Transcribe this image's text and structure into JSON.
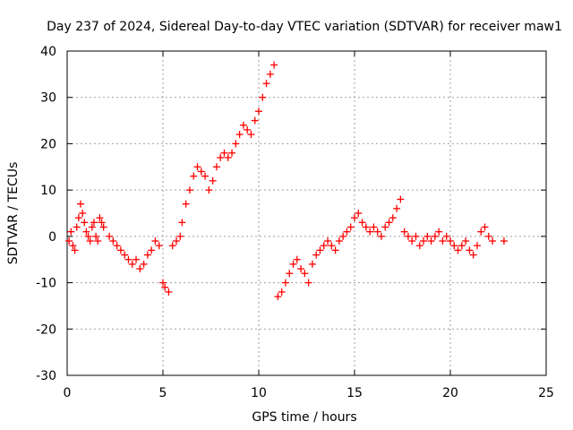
{
  "chart_data": {
    "type": "scatter",
    "title": "Day 237 of 2024, Sidereal Day-to-day VTEC variation (SDTVAR) for receiver maw1",
    "xlabel": "GPS time / hours",
    "ylabel": "SDTVAR / TECUs",
    "xlim": [
      0,
      25
    ],
    "ylim": [
      -30,
      40
    ],
    "xticks": [
      0,
      5,
      10,
      15,
      20,
      25
    ],
    "yticks": [
      -30,
      -20,
      -10,
      0,
      10,
      20,
      30,
      40
    ],
    "xtick_labels": [
      "0",
      "5",
      "10",
      "15",
      "20",
      "25"
    ],
    "ytick_labels": [
      "-30",
      "-20",
      "-10",
      "0",
      "10",
      "20",
      "30",
      "40"
    ],
    "grid": true,
    "marker": "+",
    "color": "#ff0000",
    "series": [
      {
        "name": "SDTVAR",
        "points": [
          [
            0.1,
            -1
          ],
          [
            0.2,
            1
          ],
          [
            0.3,
            -2
          ],
          [
            0.4,
            -3
          ],
          [
            0.5,
            2
          ],
          [
            0.6,
            4
          ],
          [
            0.7,
            7
          ],
          [
            0.8,
            5
          ],
          [
            0.9,
            3
          ],
          [
            1.0,
            1
          ],
          [
            1.1,
            0
          ],
          [
            1.2,
            -1
          ],
          [
            1.3,
            2
          ],
          [
            1.4,
            3
          ],
          [
            1.5,
            0
          ],
          [
            1.6,
            -1
          ],
          [
            1.7,
            4
          ],
          [
            1.8,
            3
          ],
          [
            1.9,
            2
          ],
          [
            2.2,
            0
          ],
          [
            2.4,
            -1
          ],
          [
            2.6,
            -2
          ],
          [
            2.8,
            -3
          ],
          [
            3.0,
            -4
          ],
          [
            3.2,
            -5
          ],
          [
            3.4,
            -6
          ],
          [
            3.6,
            -5
          ],
          [
            3.8,
            -7
          ],
          [
            4.0,
            -6
          ],
          [
            4.2,
            -4
          ],
          [
            4.4,
            -3
          ],
          [
            4.6,
            -1
          ],
          [
            4.8,
            -2
          ],
          [
            5.0,
            -10
          ],
          [
            5.1,
            -11
          ],
          [
            5.3,
            -12
          ],
          [
            5.5,
            -2
          ],
          [
            5.7,
            -1
          ],
          [
            5.9,
            0
          ],
          [
            6.0,
            3
          ],
          [
            6.2,
            7
          ],
          [
            6.4,
            10
          ],
          [
            6.6,
            13
          ],
          [
            6.8,
            15
          ],
          [
            7.0,
            14
          ],
          [
            7.2,
            13
          ],
          [
            7.4,
            10
          ],
          [
            7.6,
            12
          ],
          [
            7.8,
            15
          ],
          [
            8.0,
            17
          ],
          [
            8.2,
            18
          ],
          [
            8.4,
            17
          ],
          [
            8.6,
            18
          ],
          [
            8.8,
            20
          ],
          [
            9.0,
            22
          ],
          [
            9.2,
            24
          ],
          [
            9.4,
            23
          ],
          [
            9.6,
            22
          ],
          [
            9.8,
            25
          ],
          [
            10.0,
            27
          ],
          [
            10.2,
            30
          ],
          [
            10.4,
            33
          ],
          [
            10.6,
            35
          ],
          [
            10.8,
            37
          ],
          [
            11.0,
            -13
          ],
          [
            11.2,
            -12
          ],
          [
            11.4,
            -10
          ],
          [
            11.6,
            -8
          ],
          [
            11.8,
            -6
          ],
          [
            12.0,
            -5
          ],
          [
            12.2,
            -7
          ],
          [
            12.4,
            -8
          ],
          [
            12.6,
            -10
          ],
          [
            12.8,
            -6
          ],
          [
            13.0,
            -4
          ],
          [
            13.2,
            -3
          ],
          [
            13.4,
            -2
          ],
          [
            13.6,
            -1
          ],
          [
            13.8,
            -2
          ],
          [
            14.0,
            -3
          ],
          [
            14.2,
            -1
          ],
          [
            14.4,
            0
          ],
          [
            14.6,
            1
          ],
          [
            14.8,
            2
          ],
          [
            15.0,
            4
          ],
          [
            15.2,
            5
          ],
          [
            15.4,
            3
          ],
          [
            15.6,
            2
          ],
          [
            15.8,
            1
          ],
          [
            16.0,
            2
          ],
          [
            16.2,
            1
          ],
          [
            16.4,
            0
          ],
          [
            16.6,
            2
          ],
          [
            16.8,
            3
          ],
          [
            17.0,
            4
          ],
          [
            17.2,
            6
          ],
          [
            17.4,
            8
          ],
          [
            17.6,
            1
          ],
          [
            17.8,
            0
          ],
          [
            18.0,
            -1
          ],
          [
            18.2,
            0
          ],
          [
            18.4,
            -2
          ],
          [
            18.6,
            -1
          ],
          [
            18.8,
            0
          ],
          [
            19.0,
            -1
          ],
          [
            19.2,
            0
          ],
          [
            19.4,
            1
          ],
          [
            19.6,
            -1
          ],
          [
            19.8,
            0
          ],
          [
            20.0,
            -1
          ],
          [
            20.2,
            -2
          ],
          [
            20.4,
            -3
          ],
          [
            20.6,
            -2
          ],
          [
            20.8,
            -1
          ],
          [
            21.0,
            -3
          ],
          [
            21.2,
            -4
          ],
          [
            21.4,
            -2
          ],
          [
            21.6,
            1
          ],
          [
            21.8,
            2
          ],
          [
            22.0,
            0
          ],
          [
            22.2,
            -1
          ],
          [
            22.8,
            -1
          ]
        ]
      }
    ]
  }
}
